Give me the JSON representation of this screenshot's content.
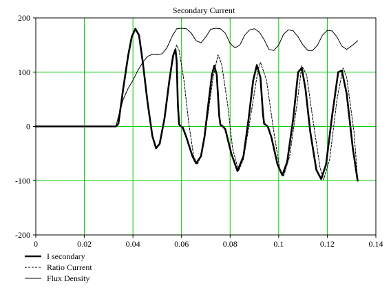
{
  "chart_data": {
    "type": "line",
    "title": "Secondary Current",
    "xlabel": "",
    "ylabel": "",
    "xlim": [
      0,
      0.14
    ],
    "ylim": [
      -200,
      200
    ],
    "x_ticks": [
      0,
      0.02,
      0.04,
      0.06,
      0.08,
      0.1,
      0.12,
      0.14
    ],
    "x_tick_labels": [
      "0",
      "0.02",
      "0.04",
      "0.06",
      "0.08",
      "0.1",
      "0.12",
      "0.14"
    ],
    "y_ticks": [
      -200,
      -100,
      0,
      100,
      200
    ],
    "y_tick_labels": [
      "-200",
      "-100",
      "0",
      "100",
      "200"
    ],
    "grid": true,
    "legend_position": "bottom-left",
    "colors": {
      "grid": "#00cc00",
      "series": "#000000",
      "frame": "#000000",
      "background": "#ffffff"
    },
    "series": [
      {
        "name": "I secondary",
        "style": "solid-thick",
        "points": [
          [
            0,
            0
          ],
          [
            0.033,
            0
          ],
          [
            0.034,
            5
          ],
          [
            0.036,
            70
          ],
          [
            0.038,
            130
          ],
          [
            0.0395,
            165
          ],
          [
            0.041,
            180
          ],
          [
            0.0425,
            168
          ],
          [
            0.044,
            120
          ],
          [
            0.046,
            45
          ],
          [
            0.048,
            -18
          ],
          [
            0.0495,
            -40
          ],
          [
            0.051,
            -32
          ],
          [
            0.053,
            15
          ],
          [
            0.055,
            85
          ],
          [
            0.0565,
            130
          ],
          [
            0.0575,
            142
          ],
          [
            0.058,
            120
          ],
          [
            0.0585,
            40
          ],
          [
            0.059,
            4
          ],
          [
            0.0595,
            1
          ],
          [
            0.0605,
            -2
          ],
          [
            0.062,
            -20
          ],
          [
            0.0645,
            -55
          ],
          [
            0.066,
            -68
          ],
          [
            0.068,
            -55
          ],
          [
            0.0695,
            -18
          ],
          [
            0.071,
            40
          ],
          [
            0.0725,
            95
          ],
          [
            0.0735,
            112
          ],
          [
            0.0745,
            95
          ],
          [
            0.0755,
            20
          ],
          [
            0.076,
            3
          ],
          [
            0.077,
            0
          ],
          [
            0.078,
            -5
          ],
          [
            0.0805,
            -50
          ],
          [
            0.083,
            -82
          ],
          [
            0.0855,
            -55
          ],
          [
            0.0875,
            10
          ],
          [
            0.0895,
            85
          ],
          [
            0.091,
            113
          ],
          [
            0.0925,
            90
          ],
          [
            0.0935,
            25
          ],
          [
            0.094,
            5
          ],
          [
            0.0955,
            0
          ],
          [
            0.097,
            -20
          ],
          [
            0.0995,
            -70
          ],
          [
            0.1015,
            -90
          ],
          [
            0.1035,
            -65
          ],
          [
            0.106,
            15
          ],
          [
            0.108,
            100
          ],
          [
            0.1095,
            108
          ],
          [
            0.111,
            70
          ],
          [
            0.113,
            -10
          ],
          [
            0.1155,
            -80
          ],
          [
            0.1175,
            -97
          ],
          [
            0.1195,
            -70
          ],
          [
            0.122,
            20
          ],
          [
            0.1245,
            100
          ],
          [
            0.126,
            103
          ],
          [
            0.128,
            60
          ],
          [
            0.1305,
            -40
          ],
          [
            0.1325,
            -100
          ]
        ]
      },
      {
        "name": "Ratio Current",
        "style": "dashed",
        "points": [
          [
            0,
            0
          ],
          [
            0.033,
            0
          ],
          [
            0.034,
            5
          ],
          [
            0.036,
            70
          ],
          [
            0.038,
            130
          ],
          [
            0.0395,
            165
          ],
          [
            0.041,
            180
          ],
          [
            0.0425,
            168
          ],
          [
            0.044,
            120
          ],
          [
            0.046,
            45
          ],
          [
            0.048,
            -18
          ],
          [
            0.0495,
            -40
          ],
          [
            0.051,
            -32
          ],
          [
            0.053,
            15
          ],
          [
            0.055,
            85
          ],
          [
            0.057,
            135
          ],
          [
            0.058,
            150
          ],
          [
            0.059,
            140
          ],
          [
            0.061,
            85
          ],
          [
            0.063,
            5
          ],
          [
            0.065,
            -55
          ],
          [
            0.0665,
            -70
          ],
          [
            0.068,
            -55
          ],
          [
            0.0705,
            10
          ],
          [
            0.073,
            90
          ],
          [
            0.075,
            132
          ],
          [
            0.0765,
            115
          ],
          [
            0.079,
            40
          ],
          [
            0.081,
            -40
          ],
          [
            0.0835,
            -82
          ],
          [
            0.0855,
            -60
          ],
          [
            0.0885,
            20
          ],
          [
            0.0915,
            105
          ],
          [
            0.0925,
            118
          ],
          [
            0.095,
            85
          ],
          [
            0.098,
            -10
          ],
          [
            0.1005,
            -80
          ],
          [
            0.102,
            -92
          ],
          [
            0.1045,
            -55
          ],
          [
            0.1075,
            40
          ],
          [
            0.1095,
            112
          ],
          [
            0.1115,
            95
          ],
          [
            0.114,
            15
          ],
          [
            0.117,
            -75
          ],
          [
            0.1185,
            -98
          ],
          [
            0.121,
            -60
          ],
          [
            0.124,
            50
          ],
          [
            0.1265,
            108
          ],
          [
            0.128,
            90
          ],
          [
            0.131,
            -10
          ],
          [
            0.1325,
            -98
          ]
        ]
      },
      {
        "name": "Flux Density",
        "style": "solid-thin",
        "points": [
          [
            0,
            0
          ],
          [
            0.033,
            0
          ],
          [
            0.034,
            18
          ],
          [
            0.036,
            50
          ],
          [
            0.038,
            70
          ],
          [
            0.04,
            85
          ],
          [
            0.042,
            103
          ],
          [
            0.044,
            118
          ],
          [
            0.046,
            129
          ],
          [
            0.048,
            133
          ],
          [
            0.05,
            132
          ],
          [
            0.052,
            134
          ],
          [
            0.054,
            145
          ],
          [
            0.056,
            165
          ],
          [
            0.058,
            180
          ],
          [
            0.06,
            181
          ],
          [
            0.062,
            180
          ],
          [
            0.064,
            172
          ],
          [
            0.066,
            158
          ],
          [
            0.068,
            154
          ],
          [
            0.07,
            165
          ],
          [
            0.072,
            179
          ],
          [
            0.074,
            181
          ],
          [
            0.076,
            180
          ],
          [
            0.078,
            172
          ],
          [
            0.08,
            153
          ],
          [
            0.082,
            145
          ],
          [
            0.084,
            150
          ],
          [
            0.086,
            168
          ],
          [
            0.088,
            178
          ],
          [
            0.09,
            180
          ],
          [
            0.092,
            174
          ],
          [
            0.094,
            160
          ],
          [
            0.096,
            142
          ],
          [
            0.098,
            140
          ],
          [
            0.1,
            150
          ],
          [
            0.102,
            170
          ],
          [
            0.104,
            178
          ],
          [
            0.106,
            176
          ],
          [
            0.108,
            165
          ],
          [
            0.11,
            150
          ],
          [
            0.112,
            140
          ],
          [
            0.114,
            140
          ],
          [
            0.116,
            150
          ],
          [
            0.118,
            168
          ],
          [
            0.12,
            177
          ],
          [
            0.122,
            176
          ],
          [
            0.124,
            165
          ],
          [
            0.126,
            148
          ],
          [
            0.128,
            142
          ],
          [
            0.1305,
            150
          ],
          [
            0.1325,
            158
          ]
        ]
      }
    ]
  }
}
